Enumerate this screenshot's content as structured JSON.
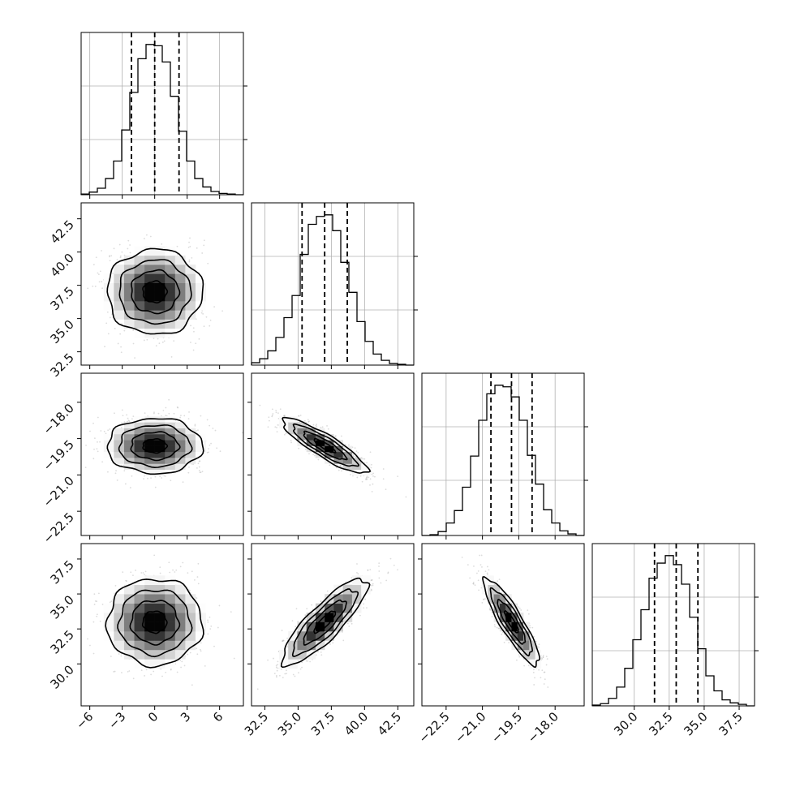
{
  "chart_data": {
    "type": "corner",
    "parameters": [
      {
        "mean": 0.0,
        "sd": 2.2,
        "range": [
          -6.8,
          8.2
        ],
        "ticks": [
          -6,
          -3,
          0,
          3,
          6
        ],
        "tick_labels": [
          "−6",
          "−3",
          "0",
          "3",
          "6"
        ],
        "quantiles": [
          -2.15,
          0.0,
          2.25
        ]
      },
      {
        "mean": 37.0,
        "sd": 1.6,
        "range": [
          31.5,
          43.7
        ],
        "ticks": [
          32.5,
          35.0,
          37.5,
          40.0,
          42.5
        ],
        "tick_labels": [
          "32.5",
          "35.0",
          "37.5",
          "40.0",
          "42.5"
        ],
        "quantiles": [
          35.3,
          37.0,
          38.7
        ]
      },
      {
        "mean": -19.8,
        "sd": 0.57,
        "range": [
          -23.5,
          -16.8
        ],
        "ticks": [
          -22.5,
          -21.0,
          -19.5,
          -18.0
        ],
        "tick_labels": [
          "−22.5",
          "−21.0",
          "−19.5",
          "−18.0"
        ],
        "quantiles": [
          -20.65,
          -19.8,
          -18.95
        ]
      },
      {
        "mean": 33.0,
        "sd": 1.55,
        "range": [
          27.0,
          38.6
        ],
        "ticks": [
          30.0,
          32.5,
          35.0,
          37.5
        ],
        "tick_labels": [
          "30.0",
          "32.5",
          "35.0",
          "37.5"
        ],
        "quantiles": [
          31.45,
          33.0,
          34.55
        ]
      }
    ],
    "histograms": [
      {
        "bin_edges": [
          -6.8,
          -6.05,
          -5.3,
          -4.55,
          -3.8,
          -3.05,
          -2.3,
          -1.55,
          -0.8,
          -0.05,
          0.7,
          1.45,
          2.2,
          2.95,
          3.7,
          4.45,
          5.2,
          5.95,
          6.7,
          7.45,
          8.2
        ],
        "counts": [
          1,
          4,
          10,
          25,
          52,
          100,
          158,
          210,
          232,
          230,
          205,
          152,
          98,
          52,
          25,
          12,
          5,
          2,
          1,
          0
        ]
      },
      {
        "bin_edges": [
          31.5,
          32.11,
          32.72,
          33.33,
          33.94,
          34.55,
          35.16,
          35.77,
          36.38,
          36.99,
          37.6,
          38.21,
          38.82,
          39.43,
          40.04,
          40.65,
          41.26,
          41.87,
          42.48,
          43.09,
          43.7
        ],
        "counts": [
          3,
          8,
          18,
          35,
          60,
          88,
          140,
          178,
          188,
          190,
          170,
          130,
          92,
          55,
          30,
          14,
          6,
          2,
          1,
          0
        ]
      },
      {
        "bin_edges": [
          -23.5,
          -23.165,
          -22.83,
          -22.495,
          -22.16,
          -21.825,
          -21.49,
          -21.155,
          -20.82,
          -20.485,
          -20.15,
          -19.815,
          -19.48,
          -19.145,
          -18.81,
          -18.475,
          -18.14,
          -17.805,
          -17.47,
          -17.135,
          -16.8
        ],
        "counts": [
          0,
          1,
          5,
          16,
          32,
          62,
          102,
          148,
          182,
          193,
          191,
          178,
          148,
          103,
          66,
          33,
          16,
          6,
          2,
          0
        ]
      },
      {
        "bin_edges": [
          27.0,
          27.58,
          28.16,
          28.74,
          29.32,
          29.9,
          30.48,
          31.06,
          31.64,
          32.22,
          32.8,
          33.38,
          33.96,
          34.54,
          35.12,
          35.7,
          36.28,
          36.86,
          37.44,
          38.02,
          38.6
        ],
        "counts": [
          1,
          3,
          10,
          25,
          50,
          88,
          128,
          170,
          190,
          200,
          188,
          162,
          118,
          76,
          40,
          20,
          8,
          4,
          2,
          0
        ]
      }
    ],
    "correlations": [
      [
        1,
        0,
        0,
        0
      ],
      [
        0,
        1,
        -0.88,
        0.85
      ],
      [
        0,
        -0.88,
        1,
        -0.88
      ],
      [
        0,
        0.85,
        -0.88,
        1
      ]
    ],
    "grid": true
  }
}
